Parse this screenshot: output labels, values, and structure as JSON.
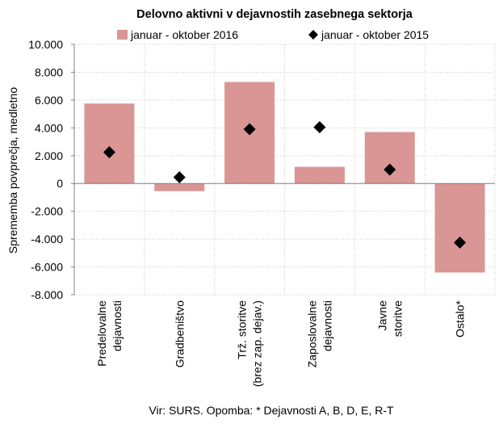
{
  "chart_data": {
    "type": "bar",
    "title": "Delovno aktivni v dejavnostih zasebnega sektorja",
    "ylabel": "Sprememba povprečja, medletno",
    "xlabel": "",
    "ylim": [
      -8000,
      10000
    ],
    "yticks": [
      10000,
      8000,
      6000,
      4000,
      2000,
      0,
      -2000,
      -4000,
      -6000,
      -8000
    ],
    "ytick_labels": [
      "10.000",
      "8.000",
      "6.000",
      "4.000",
      "2.000",
      "0",
      "-2.000",
      "-4.000",
      "-6.000",
      "-8.000"
    ],
    "categories": [
      [
        "Predelovalne",
        "dejavnosti"
      ],
      [
        "Gradbeništvo"
      ],
      [
        "Trž. storitve",
        "(brez zap. dejav.)"
      ],
      [
        "Zaposlovalne",
        "dejavnosti"
      ],
      [
        "Javne",
        "storitve"
      ],
      [
        "Ostalo*"
      ]
    ],
    "series": [
      {
        "name": "januar - oktober 2016",
        "type": "bar",
        "color": "#d99694",
        "values": [
          5750,
          -550,
          7300,
          1200,
          3700,
          -6400
        ]
      },
      {
        "name": "januar - oktober 2015",
        "type": "marker",
        "marker": "diamond",
        "color": "#000000",
        "values": [
          2250,
          450,
          3900,
          4050,
          1000,
          -4250
        ]
      }
    ],
    "legend_position": "top",
    "grid": {
      "horizontal": true,
      "vertical": true,
      "style": "dotted"
    },
    "source_note": "Vir: SURS. Opomba: * Dejavnosti A, B, D, E, R-T"
  }
}
